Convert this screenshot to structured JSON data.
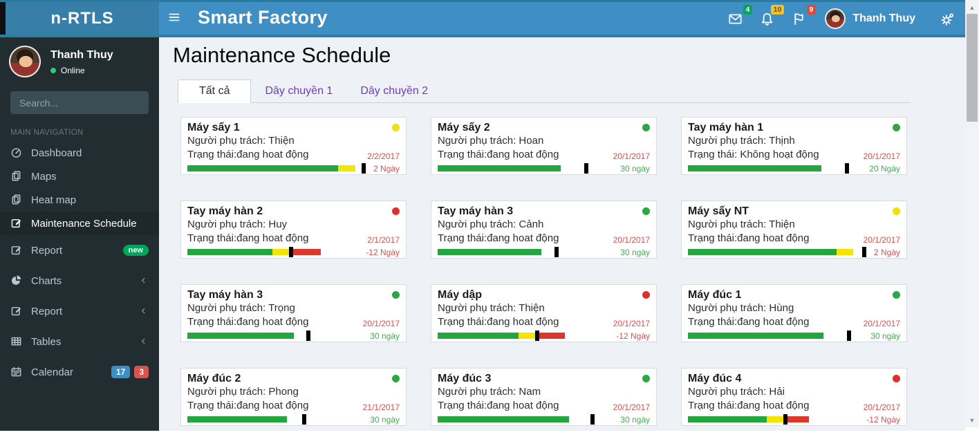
{
  "app": {
    "logo": "n-RTLS",
    "title": "Smart Factory"
  },
  "header": {
    "user_name": "Thanh Thuy",
    "icons": [
      {
        "name": "messages-icon",
        "icon": "envelope-icon",
        "badge": "4",
        "badge_color": "green"
      },
      {
        "name": "notifications-icon",
        "icon": "bell-icon",
        "badge": "10",
        "badge_color": "orange"
      },
      {
        "name": "tasks-icon",
        "icon": "flag-icon",
        "badge": "9",
        "badge_color": "red"
      }
    ],
    "settings_icon": "gears-icon",
    "menu_toggle_icon": "hamburger-icon"
  },
  "sidebar": {
    "user": {
      "name": "Thanh Thuy",
      "status": "Online"
    },
    "search_placeholder": "Search...",
    "search_icon": "search-icon",
    "section_label": "MAIN NAVIGATION",
    "items": [
      {
        "label": "Dashboard",
        "icon": "dashboard-icon"
      },
      {
        "label": "Maps",
        "icon": "files-icon"
      },
      {
        "label": "Heat map",
        "icon": "files-icon"
      },
      {
        "label": "Maintenance Schedule",
        "icon": "edit-icon",
        "active": true
      },
      {
        "label": "Report",
        "icon": "edit-icon",
        "badges": [
          {
            "text": "new",
            "color": "green"
          }
        ]
      },
      {
        "label": "Charts",
        "icon": "pie-icon",
        "chevron": true
      },
      {
        "label": "Report",
        "icon": "edit-icon",
        "chevron": true
      },
      {
        "label": "Tables",
        "icon": "table-icon",
        "chevron": true
      },
      {
        "label": "Calendar",
        "icon": "calendar-icon",
        "badges": [
          {
            "text": "17",
            "color": "blue"
          },
          {
            "text": "3",
            "color": "red"
          }
        ]
      }
    ]
  },
  "page": {
    "title": "Maintenance Schedule",
    "tabs": [
      {
        "label": "Tất cả",
        "active": true
      },
      {
        "label": "Dây chuyền 1"
      },
      {
        "label": "Dây chuyền 2"
      }
    ]
  },
  "cards": [
    {
      "name": "Máy sấy 1",
      "owner_line": "Người phụ trách: Thiện",
      "status": "Trạng thái:đang hoat động",
      "date": "2/2/2017",
      "days": "2 Ngày",
      "days_color": "red",
      "dot": "yellow",
      "bar": {
        "segments": [
          [
            "green",
            71
          ],
          [
            "yellow",
            8
          ]
        ],
        "marker": 82
      }
    },
    {
      "name": "Máy sấy 2",
      "owner_line": "Người phụ trách: Hoan",
      "status": "Trạng thái:đang hoat động",
      "date": "20/1/2017",
      "days": "30 ngày",
      "days_color": "green",
      "dot": "green",
      "bar": {
        "segments": [
          [
            "green",
            58
          ]
        ],
        "marker": 69
      }
    },
    {
      "name": "Tay máy hàn 1",
      "owner_line": "Người phụ trách: Thịnh",
      "status": "Trạng thái: Không hoạt động",
      "date": "20/1/2017",
      "days": "20 Ngày",
      "days_color": "green",
      "dot": "green",
      "bar": {
        "segments": [
          [
            "green",
            63
          ]
        ],
        "marker": 74
      }
    },
    {
      "name": "Tay máy hàn 2",
      "owner_line": "Người phụ trách: Huy",
      "status": "Trạng thái:đang hoat động",
      "date": "2/1/2017",
      "days": "-12 Ngày",
      "days_color": "red",
      "dot": "red",
      "bar": {
        "segments": [
          [
            "green",
            40
          ],
          [
            "yellow",
            8
          ],
          [
            "red",
            15
          ]
        ],
        "marker": 48
      }
    },
    {
      "name": "Tay máy hàn 3",
      "owner_line": "Người phụ trách: Cảnh",
      "status": "Trạng thái:đang hoat động",
      "date": "20/1/2017",
      "days": "30 ngày",
      "days_color": "green",
      "dot": "green",
      "bar": {
        "segments": [
          [
            "green",
            49
          ]
        ],
        "marker": 55
      }
    },
    {
      "name": "Máy sấy NT",
      "owner_line": "Người phụ trách: Thiện",
      "status": "Trạng thái:đang hoat động",
      "date": "20/1/2017",
      "days": "2 Ngày",
      "days_color": "red",
      "dot": "yellow",
      "bar": {
        "segments": [
          [
            "green",
            70
          ],
          [
            "yellow",
            8
          ]
        ],
        "marker": 82
      }
    },
    {
      "name": "Tay máy hàn 3",
      "owner_line": "Người phụ trách: Trọng",
      "status": "Trạng thái:đang hoat động",
      "date": "20/1/2017",
      "days": "30 ngày",
      "days_color": "green",
      "dot": "green",
      "bar": {
        "segments": [
          [
            "green",
            50
          ]
        ],
        "marker": 56
      }
    },
    {
      "name": "Máy dập",
      "owner_line": "Người phụ trách: Thiện",
      "status": "Trạng thái:đang hoat động",
      "date": "20/1/2017",
      "days": "-12 Ngày",
      "days_color": "red",
      "dot": "red",
      "bar": {
        "segments": [
          [
            "green",
            38
          ],
          [
            "yellow",
            8
          ],
          [
            "red",
            14
          ]
        ],
        "marker": 46
      }
    },
    {
      "name": "Máy đúc 1",
      "owner_line": "Người phụ trách: Hùng",
      "status": "Trạng thái:đang hoat động",
      "date": "20/1/2017",
      "days": "30 ngày",
      "days_color": "green",
      "dot": "green",
      "bar": {
        "segments": [
          [
            "green",
            64
          ]
        ],
        "marker": 75
      }
    },
    {
      "name": "Máy đúc 2",
      "owner_line": "Người phụ trách: Phong",
      "status": "Trạng thái:đang hoat động",
      "date": "21/1/2017",
      "days": "30 ngày",
      "days_color": "green",
      "dot": "green",
      "bar": {
        "segments": [
          [
            "green",
            47
          ]
        ],
        "marker": 54
      }
    },
    {
      "name": "Máy đúc 3",
      "owner_line": "Người phụ trách: Nam",
      "status": "Trạng thái:đang hoat động",
      "date": "20/1/2017",
      "days": "30 ngày",
      "days_color": "green",
      "dot": "green",
      "bar": {
        "segments": [
          [
            "green",
            62
          ]
        ],
        "marker": 72
      }
    },
    {
      "name": "Máy đúc 4",
      "owner_line": "Người phụ trách: Hải",
      "status": "Trạng thái:đang hoat động",
      "date": "20/1/2017",
      "days": "-12 Ngày",
      "days_color": "red",
      "dot": "red",
      "bar": {
        "segments": [
          [
            "green",
            37
          ],
          [
            "yellow",
            8
          ],
          [
            "red",
            12
          ]
        ],
        "marker": 45
      }
    }
  ],
  "colors": {
    "header": "#3f8ec4",
    "logo": "#377fa9",
    "sidebar": "#222d32",
    "sidebar_active": "#1e282c",
    "content_bg": "#eef1f6",
    "bar_green": "#23a63e",
    "bar_yellow": "#f4e400",
    "bar_red": "#dd372c",
    "dot_green": "#2ba743",
    "dot_yellow": "#f4e006",
    "dot_red": "#e02d2d",
    "date_red": "#e04f4f",
    "days_green": "#3fb14d",
    "tab_link": "#7339c0"
  }
}
